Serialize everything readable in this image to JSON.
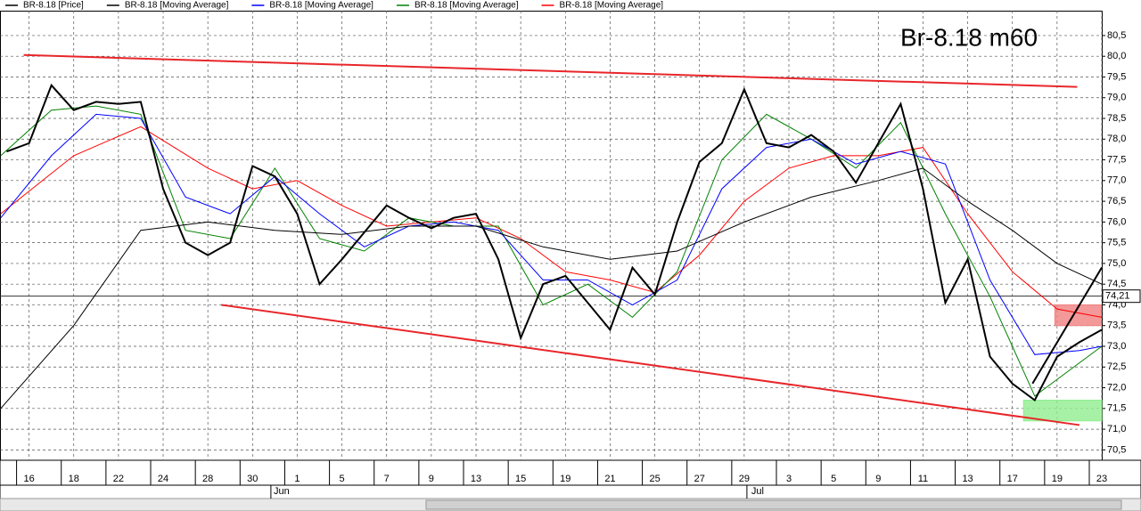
{
  "chart_data": {
    "type": "line",
    "title": "Br-8.18 m60",
    "series": [
      {
        "name": "BR-8.18 [Price]",
        "color": "#000000",
        "width": 2,
        "x": [
          -1,
          0,
          1,
          2,
          3,
          4,
          5,
          6,
          7,
          8,
          9,
          10,
          11,
          12,
          13,
          14,
          15,
          16,
          17,
          18,
          19,
          20,
          21,
          22,
          23,
          24,
          25,
          26,
          27,
          28,
          29,
          30,
          31,
          32,
          33,
          34,
          35,
          36,
          37,
          38,
          39,
          40,
          41,
          42,
          43,
          44,
          45,
          46,
          47,
          48
        ],
        "values": [
          77.7,
          77.9,
          79.3,
          78.7,
          78.9,
          78.85,
          78.9,
          76.8,
          75.5,
          75.2,
          75.5,
          77.35,
          77.1,
          76.2,
          74.5,
          75.1,
          75.75,
          76.4,
          76.1,
          75.85,
          76.1,
          76.2,
          75.1,
          73.2,
          74.5,
          74.7,
          74.05,
          73.4,
          74.9,
          74.25,
          76.0,
          77.45,
          77.9,
          79.2,
          77.9,
          77.8,
          78.1,
          77.7,
          76.95,
          77.9,
          78.85,
          76.8,
          74.05,
          75.1,
          72.75,
          72.1,
          71.7,
          72.75,
          73.1,
          73.4
        ]
      },
      {
        "name": "BR-8.18 [Moving Average]",
        "color": "#000000",
        "width": 1,
        "x": [
          -1.27,
          2,
          5,
          8,
          11,
          14,
          17,
          20,
          23,
          26,
          29,
          32,
          35,
          38,
          40,
          42,
          44,
          46,
          48
        ],
        "values": [
          71.5,
          73.5,
          75.8,
          76.0,
          75.8,
          75.7,
          75.9,
          75.9,
          75.4,
          75.1,
          75.3,
          76.0,
          76.6,
          77.0,
          77.3,
          76.5,
          75.8,
          75.0,
          74.5
        ]
      },
      {
        "name": "BR-8.18 [Moving Average]",
        "color": "#0000ff",
        "width": 1,
        "x": [
          -1.27,
          1,
          3,
          5,
          7,
          9,
          11,
          13,
          15,
          17,
          19,
          21,
          23,
          25,
          27,
          29,
          31,
          33,
          35,
          37,
          39,
          41,
          43,
          45,
          47,
          48
        ],
        "values": [
          76.1,
          77.6,
          78.6,
          78.5,
          76.6,
          76.2,
          77.1,
          76.2,
          75.4,
          75.9,
          76.0,
          75.8,
          74.6,
          74.6,
          74.0,
          74.6,
          76.8,
          77.8,
          78.0,
          77.4,
          77.7,
          77.4,
          74.6,
          72.8,
          72.9,
          73.0
        ]
      },
      {
        "name": "BR-8.18 [Moving Average]",
        "color": "#008000",
        "width": 1,
        "x": [
          -1.27,
          1,
          3,
          5,
          7,
          9,
          11,
          13,
          15,
          17,
          19,
          21,
          23,
          25,
          27,
          29,
          31,
          33,
          35,
          37,
          39,
          41,
          43,
          45,
          47,
          48
        ],
        "values": [
          77.6,
          78.7,
          78.8,
          78.6,
          75.8,
          75.6,
          77.3,
          75.6,
          75.3,
          76.1,
          75.9,
          75.9,
          74.0,
          74.5,
          73.7,
          74.8,
          77.5,
          78.6,
          78.0,
          77.3,
          78.4,
          76.2,
          74.2,
          71.8,
          72.6,
          73.0
        ]
      },
      {
        "name": "BR-8.18 [Moving Average]",
        "color": "#ff0000",
        "width": 1,
        "x": [
          -1.27,
          2,
          5,
          8,
          10,
          12,
          14,
          16,
          18,
          20,
          22,
          24,
          26,
          28,
          30,
          32,
          34,
          36,
          38,
          40,
          42,
          44,
          46,
          48
        ],
        "values": [
          76.2,
          77.6,
          78.3,
          77.3,
          76.8,
          77.0,
          76.4,
          75.9,
          76.0,
          76.1,
          75.6,
          74.8,
          74.6,
          74.3,
          75.2,
          76.5,
          77.3,
          77.6,
          77.6,
          77.8,
          76.2,
          74.8,
          73.9,
          73.7
        ]
      }
    ],
    "trend_lines": [
      {
        "color": "#e8262a",
        "x": [
          -0.24,
          46.9
        ],
        "values": [
          80.03,
          79.26
        ]
      },
      {
        "color": "#e8262a",
        "x": [
          8.6,
          47.0
        ],
        "values": [
          74.0,
          71.1
        ]
      },
      {
        "color": "#000000",
        "x": [
          44.9,
          48.0
        ],
        "values": [
          72.1,
          74.9
        ]
      }
    ],
    "zones": [
      {
        "color": "#f08080",
        "x": [
          45.9,
          47.97
        ],
        "y": [
          73.5,
          74.0
        ]
      },
      {
        "color": "#90ee90",
        "x": [
          44.5,
          48.0
        ],
        "y": [
          71.2,
          71.7
        ]
      }
    ],
    "last_price": {
      "value": 74.21,
      "label": "74,21"
    },
    "xlim": [
      -1.3,
      48
    ],
    "ylim": [
      70.25,
      81.1
    ],
    "xticks": [
      {
        "value": 0,
        "label": "16"
      },
      {
        "value": 2,
        "label": "18"
      },
      {
        "value": 4,
        "label": "22"
      },
      {
        "value": 6,
        "label": "24"
      },
      {
        "value": 8,
        "label": "28"
      },
      {
        "value": 10,
        "label": "30"
      },
      {
        "value": 12,
        "label": "1"
      },
      {
        "value": 14,
        "label": "5"
      },
      {
        "value": 16,
        "label": "7"
      },
      {
        "value": 18,
        "label": "9"
      },
      {
        "value": 20,
        "label": "13"
      },
      {
        "value": 22,
        "label": "15"
      },
      {
        "value": 24,
        "label": "19"
      },
      {
        "value": 26,
        "label": "21"
      },
      {
        "value": 28,
        "label": "25"
      },
      {
        "value": 30,
        "label": "27"
      },
      {
        "value": 32,
        "label": "29"
      },
      {
        "value": 34,
        "label": "3"
      },
      {
        "value": 36,
        "label": "5"
      },
      {
        "value": 38,
        "label": "9"
      },
      {
        "value": 40,
        "label": "11"
      },
      {
        "value": 42,
        "label": "13"
      },
      {
        "value": 44,
        "label": "17"
      },
      {
        "value": 46,
        "label": "19"
      },
      {
        "value": 48,
        "label": "23"
      }
    ],
    "month_ticks": [
      {
        "value": 11.3,
        "label": "Jun"
      },
      {
        "value": 32.6,
        "label": "Jul"
      }
    ],
    "yticks": [
      {
        "value": 70.5,
        "label": "70,5"
      },
      {
        "value": 71,
        "label": "71,0"
      },
      {
        "value": 71.5,
        "label": "71,5"
      },
      {
        "value": 72,
        "label": "72,0"
      },
      {
        "value": 72.5,
        "label": "72,5"
      },
      {
        "value": 73,
        "label": "73,0"
      },
      {
        "value": 73.5,
        "label": "73,5"
      },
      {
        "value": 74,
        "label": "74,0"
      },
      {
        "value": 74.5,
        "label": "74,5"
      },
      {
        "value": 75,
        "label": "75,0"
      },
      {
        "value": 75.5,
        "label": "75,5"
      },
      {
        "value": 76,
        "label": "76,0"
      },
      {
        "value": 76.5,
        "label": "76,5"
      },
      {
        "value": 77,
        "label": "77,0"
      },
      {
        "value": 77.5,
        "label": "77,5"
      },
      {
        "value": 78,
        "label": "78,0"
      },
      {
        "value": 78.5,
        "label": "78,5"
      },
      {
        "value": 79,
        "label": "79,0"
      },
      {
        "value": 79.5,
        "label": "79,5"
      },
      {
        "value": 80,
        "label": "80,0"
      },
      {
        "value": 80.5,
        "label": "80,5"
      }
    ],
    "grid": true
  }
}
